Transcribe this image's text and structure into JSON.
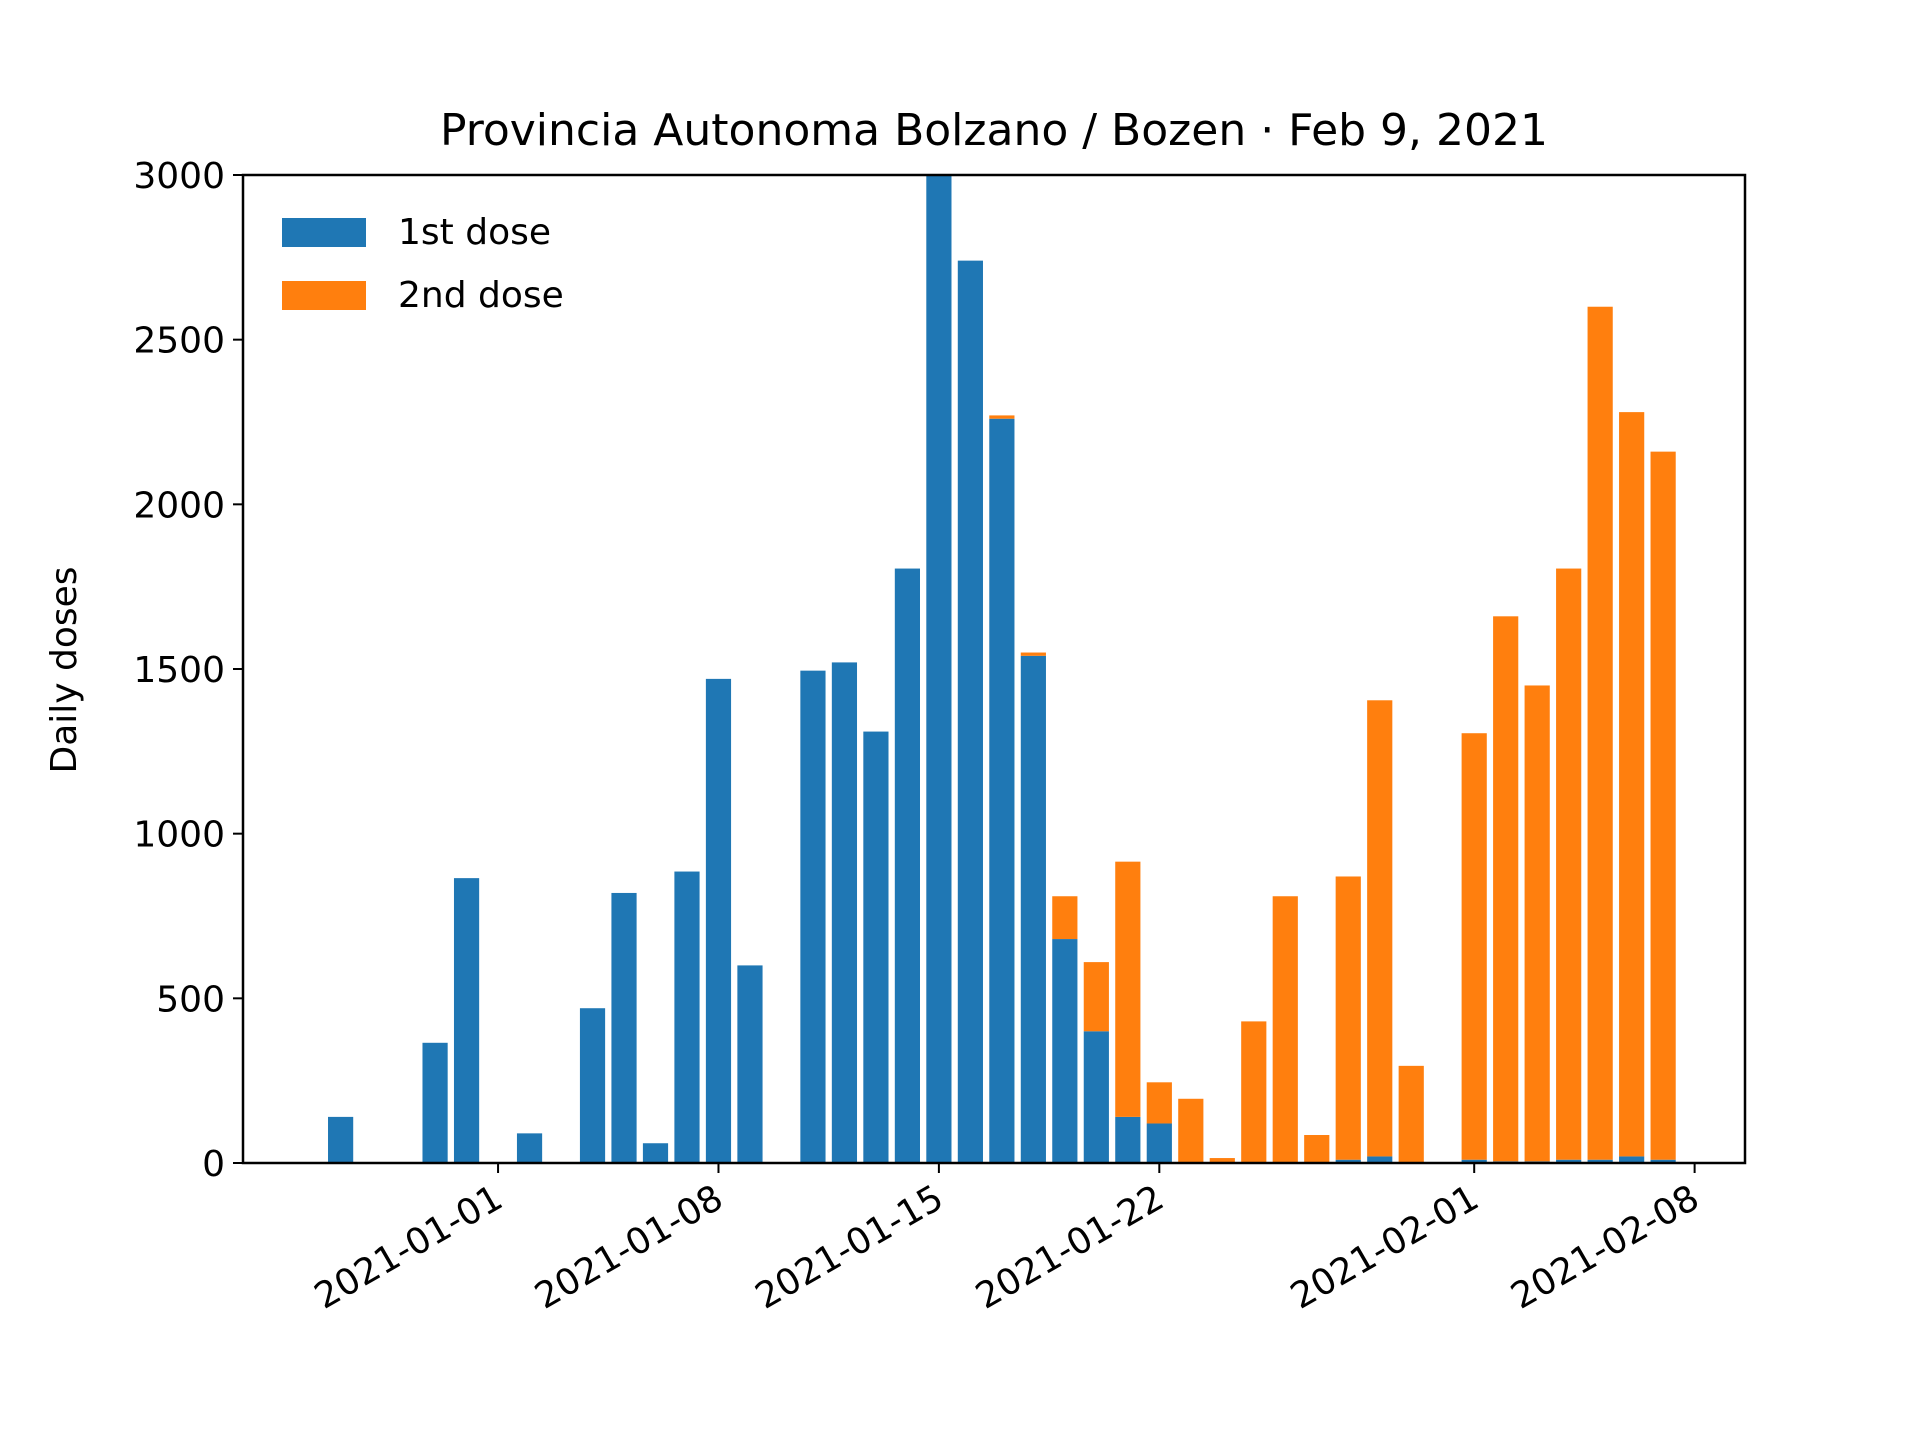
{
  "chart_data": {
    "type": "bar",
    "stacked": true,
    "title": "Provincia Autonoma Bolzano / Bozen · Feb 9, 2021",
    "xlabel": "",
    "ylabel": "Daily doses",
    "ylim": [
      0,
      3000
    ],
    "yticks": [
      0,
      500,
      1000,
      1500,
      2000,
      2500,
      3000
    ],
    "xtick_labels": [
      "2021-01-01",
      "2021-01-08",
      "2021-01-15",
      "2021-01-22",
      "2021-02-01",
      "2021-02-08"
    ],
    "legend_position": "top-left",
    "grid": false,
    "dates": [
      "2020-12-27",
      "2020-12-28",
      "2020-12-29",
      "2020-12-30",
      "2020-12-31",
      "2021-01-01",
      "2021-01-02",
      "2021-01-03",
      "2021-01-04",
      "2021-01-05",
      "2021-01-06",
      "2021-01-07",
      "2021-01-08",
      "2021-01-09",
      "2021-01-10",
      "2021-01-11",
      "2021-01-12",
      "2021-01-13",
      "2021-01-14",
      "2021-01-15",
      "2021-01-16",
      "2021-01-17",
      "2021-01-18",
      "2021-01-19",
      "2021-01-20",
      "2021-01-21",
      "2021-01-22",
      "2021-01-23",
      "2021-01-24",
      "2021-01-25",
      "2021-01-26",
      "2021-01-27",
      "2021-01-28",
      "2021-01-29",
      "2021-01-30",
      "2021-01-31",
      "2021-02-01",
      "2021-02-02",
      "2021-02-03",
      "2021-02-04",
      "2021-02-05",
      "2021-02-06",
      "2021-02-07"
    ],
    "series": [
      {
        "name": "1st dose",
        "color": "#1f77b4",
        "values": [
          140,
          0,
          0,
          365,
          865,
          0,
          90,
          0,
          470,
          820,
          60,
          885,
          1470,
          600,
          0,
          1495,
          1520,
          1310,
          1805,
          3000,
          2740,
          2260,
          1540,
          680,
          400,
          140,
          120,
          0,
          0,
          0,
          0,
          0,
          10,
          20,
          0,
          0,
          10,
          5,
          5,
          10,
          10,
          20,
          10
        ]
      },
      {
        "name": "2nd dose",
        "color": "#ff7f0e",
        "values": [
          0,
          0,
          0,
          0,
          0,
          0,
          0,
          0,
          0,
          0,
          0,
          0,
          0,
          0,
          0,
          0,
          0,
          0,
          0,
          0,
          0,
          10,
          10,
          130,
          210,
          775,
          125,
          195,
          15,
          430,
          810,
          85,
          860,
          1385,
          295,
          0,
          1295,
          1655,
          1445,
          1795,
          2590,
          2260,
          2150
        ]
      }
    ]
  }
}
